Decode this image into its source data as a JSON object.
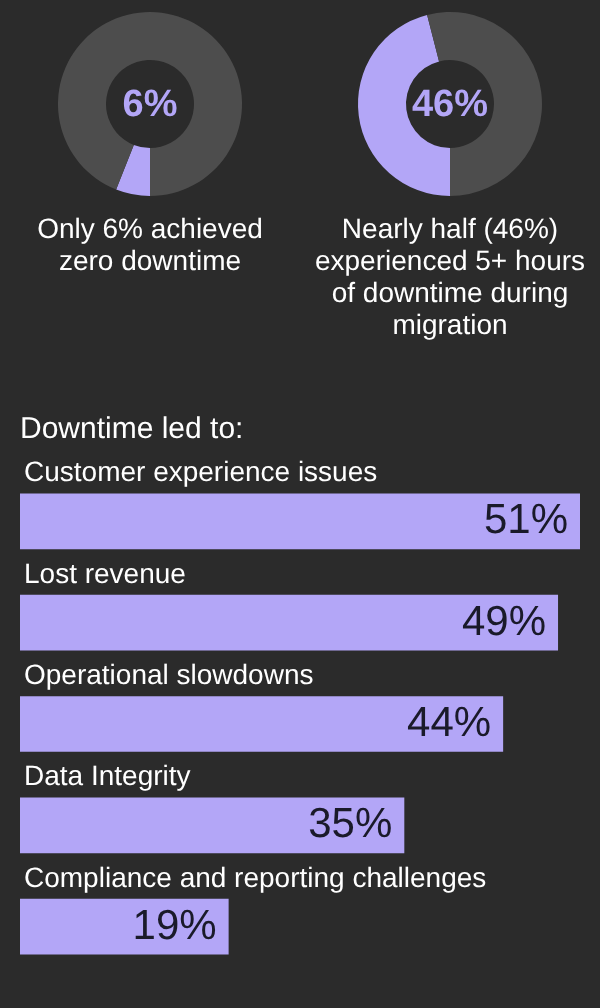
{
  "chart_data": [
    {
      "type": "donut",
      "title": "Only 6% achieved zero downtime",
      "categories": [
        null,
        null
      ],
      "values": [
        6,
        94
      ],
      "colors": [
        "#b3a6f7",
        "#4d4d4d"
      ],
      "value_labels": [
        "6%",
        null
      ]
    },
    {
      "type": "donut",
      "title": "Nearly half (46%) experienced 5+ hours of downtime during migration",
      "categories": [
        null,
        null
      ],
      "values": [
        46,
        54
      ],
      "colors": [
        "#b3a6f7",
        "#4d4d4d"
      ],
      "value_labels": [
        "46%",
        null
      ]
    },
    {
      "type": "bar",
      "orientation": "horizontal",
      "title": "Downtime led to:",
      "categories": [
        "Customer experience issues",
        "Lost revenue",
        "Operational slowdowns",
        "Data Integrity",
        "Compliance and reporting challenges"
      ],
      "values": [
        51,
        49,
        44,
        35,
        19
      ],
      "color": "#b3a6f7",
      "value_labels": [
        "51%",
        "49%",
        "44%",
        "35%",
        "19%"
      ]
    }
  ]
}
